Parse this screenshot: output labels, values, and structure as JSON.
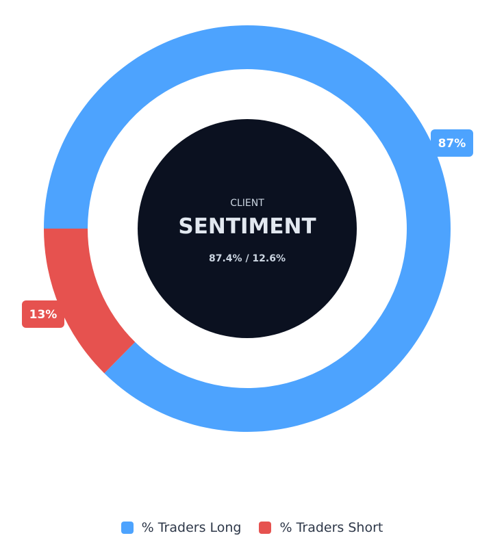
{
  "chart_data": {
    "type": "pie",
    "series": [
      {
        "name": "% Traders Long",
        "value": 87.4,
        "color": "#4da3fe",
        "label": "87%"
      },
      {
        "name": "% Traders Short",
        "value": 12.6,
        "color": "#e6524f",
        "label": "13%"
      }
    ],
    "center": {
      "kicker": "CLIENT",
      "title": "SENTIMENT",
      "subtitle": "87.4% / 12.6%"
    },
    "legend_position": "bottom-center"
  },
  "colors": {
    "center_fill": "#0b1120",
    "center_text": "#e2e8f0",
    "kicker_text": "#cbd5e1"
  }
}
